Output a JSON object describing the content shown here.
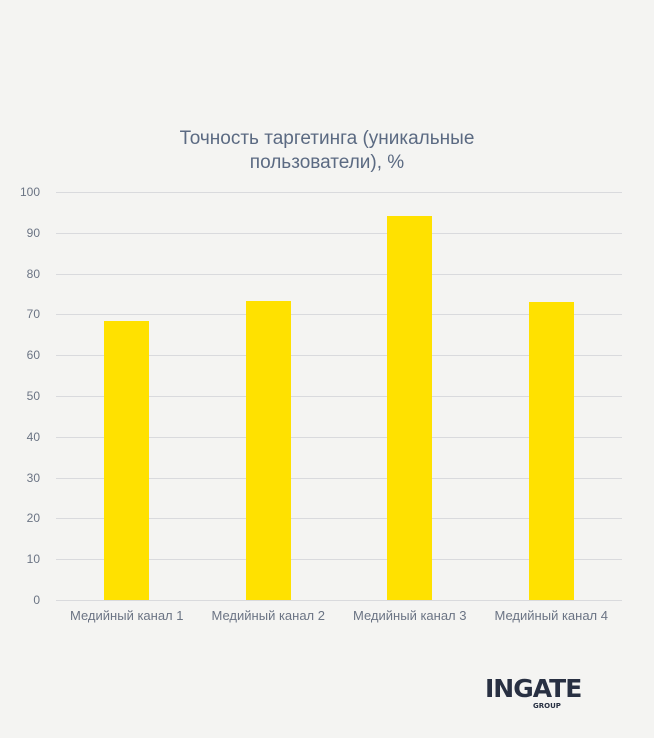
{
  "chart_data": {
    "type": "bar",
    "title": "Точность таргетинга (уникальные пользователи), %",
    "title_lines": [
      "Точность таргетинга (уникальные",
      "пользователи), %"
    ],
    "categories": [
      "Медийный канал 1",
      "Медийный канал 2",
      "Медийный канал 3",
      "Медийный канал 4"
    ],
    "values": [
      68.5,
      73.3,
      94.1,
      73.0
    ],
    "xlabel": "",
    "ylabel": "",
    "ylim": [
      0,
      100
    ],
    "yticks": [
      0,
      10,
      20,
      30,
      40,
      50,
      60,
      70,
      80,
      90,
      100
    ],
    "grid": true,
    "legend": "none",
    "bar_color": "#ffe100"
  },
  "logo": {
    "main": "INGATE",
    "sub": "GROUP",
    "color": "#283042"
  }
}
